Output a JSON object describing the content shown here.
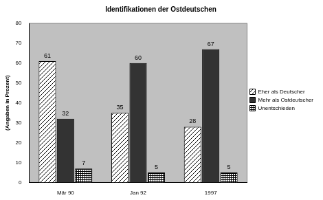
{
  "chart_data": {
    "type": "bar",
    "title": "Identifikationen der Ostdeutschen",
    "y_label": "(Angaben in Prozent)",
    "categories": [
      "Mär 90",
      "Jan 92",
      "1997"
    ],
    "series": [
      {
        "name": "Eher als Deutscher",
        "color": "#ffffff",
        "values": [
          61,
          35,
          28
        ]
      },
      {
        "name": "Mehr als Ostdeutscher",
        "color": "#333333",
        "values": [
          32,
          60,
          67
        ]
      },
      {
        "name": "Unentschieden",
        "color": "#ffffff",
        "values": [
          7,
          5,
          5
        ]
      }
    ],
    "ylim": [
      0,
      80
    ],
    "yticks": [
      0,
      10,
      20,
      30,
      40,
      50,
      60,
      70,
      80
    ],
    "grid": false,
    "legend": "right",
    "data_labels": true
  }
}
